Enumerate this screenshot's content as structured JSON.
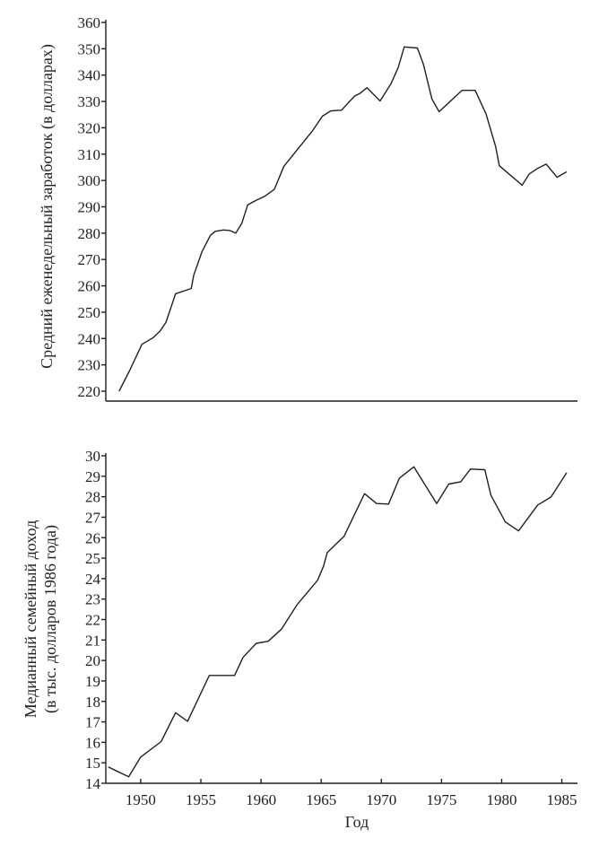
{
  "chart_data": [
    {
      "type": "line",
      "title": "",
      "xlabel": "",
      "ylabel": "Средний еженедельный заработок (в долларах)",
      "xlim": [
        1947.1,
        1986.3
      ],
      "ylim": [
        220,
        360
      ],
      "yticks": [
        220,
        230,
        240,
        250,
        260,
        270,
        280,
        290,
        300,
        310,
        320,
        330,
        340,
        350,
        360
      ],
      "xticks": [],
      "grid": false,
      "color": "#231f20",
      "x": [
        1948.2,
        1949.1,
        1950.1,
        1951.0,
        1951.6,
        1952.1,
        1952.9,
        1954.2,
        1954.4,
        1955.1,
        1955.8,
        1956.2,
        1956.9,
        1957.4,
        1957.9,
        1958.4,
        1958.9,
        1959.6,
        1960.3,
        1961.1,
        1961.9,
        1963.6,
        1964.3,
        1965.1,
        1965.8,
        1966.7,
        1967.3,
        1967.8,
        1968.2,
        1968.8,
        1969.9,
        1970.8,
        1971.4,
        1971.9,
        1973.0,
        1973.5,
        1974.2,
        1974.8,
        1976.7,
        1977.8,
        1978.7,
        1979.5,
        1979.8,
        1980.6,
        1981.7,
        1982.3,
        1983.0,
        1983.7,
        1984.6,
        1985.4
      ],
      "y": [
        220,
        228,
        237.8,
        240.2,
        242.8,
        246.2,
        257,
        259,
        264,
        273,
        279.2,
        280.7,
        281.2,
        281,
        280,
        283.7,
        290.8,
        292.5,
        294,
        296.6,
        305.4,
        315,
        319,
        324.4,
        326.4,
        326.7,
        329.8,
        332.1,
        333,
        335.2,
        330.2,
        336.7,
        342.9,
        350.7,
        350.3,
        344.1,
        331,
        326.1,
        334.2,
        334.2,
        325.3,
        312.8,
        305.6,
        302.5,
        298.2,
        302.5,
        304.6,
        306.2,
        301.2,
        303.3
      ]
    },
    {
      "type": "line",
      "title": "",
      "xlabel": "Год",
      "ylabel": [
        "Медианный семейный доход",
        "(в тыс. долларов 1986 года)"
      ],
      "xlim": [
        1947.1,
        1986.3
      ],
      "ylim": [
        14,
        30
      ],
      "yticks": [
        14,
        15,
        16,
        17,
        18,
        19,
        20,
        21,
        22,
        23,
        24,
        25,
        26,
        27,
        28,
        29,
        30
      ],
      "xticks": [
        1950,
        1955,
        1960,
        1965,
        1970,
        1975,
        1980,
        1985
      ],
      "grid": false,
      "color": "#231f20",
      "x": [
        1947.3,
        1949.0,
        1950.0,
        1951.7,
        1952.9,
        1953.9,
        1955.7,
        1957.8,
        1958.5,
        1959.6,
        1960.6,
        1961.7,
        1963.0,
        1964.7,
        1965.2,
        1965.5,
        1966.9,
        1968.6,
        1969.6,
        1970.6,
        1971.5,
        1972.7,
        1974.6,
        1975.6,
        1976.6,
        1977.4,
        1978.6,
        1979.1,
        1980.3,
        1981.4,
        1983.0,
        1984.1,
        1985.4
      ],
      "y": [
        14.8,
        14.32,
        15.28,
        16.04,
        17.45,
        17.03,
        19.27,
        19.27,
        20.15,
        20.84,
        20.94,
        21.53,
        22.73,
        23.92,
        24.62,
        25.27,
        26.07,
        28.15,
        27.67,
        27.64,
        28.91,
        29.46,
        27.67,
        28.62,
        28.73,
        29.35,
        29.32,
        28.08,
        26.77,
        26.33,
        27.6,
        27.99,
        29.17
      ]
    }
  ]
}
